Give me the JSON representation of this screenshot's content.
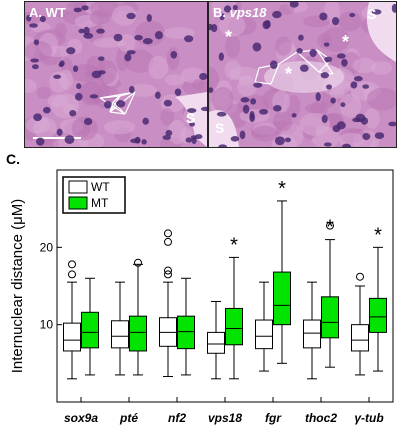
{
  "figure": {
    "panel_a": {
      "letter": "A.",
      "name": "WT",
      "s_labels": [
        "S"
      ],
      "asterisks": []
    },
    "panel_b": {
      "letter": "B.",
      "name": "vps18",
      "s_labels": [
        "S",
        "S"
      ],
      "asterisks": [
        "*",
        "*",
        "*"
      ]
    },
    "panel_c": {
      "letter": "C."
    }
  },
  "colors": {
    "wt": "#ffffff",
    "mt": "#00e400",
    "stain_bg": "#c98fc4",
    "nucleus": "#4b2a73"
  },
  "chart_data": {
    "type": "box",
    "ylabel": "Internuclear distance (μM)",
    "ylim": [
      0,
      30
    ],
    "yticks": [
      10,
      20
    ],
    "categories": [
      "sox9a",
      "pté",
      "nf2",
      "vps18",
      "fgr",
      "thoc2",
      "γ-tub"
    ],
    "legend": {
      "position": "top-left",
      "entries": [
        "WT",
        "MT"
      ]
    },
    "significance_marker": "*",
    "series": [
      {
        "name": "WT",
        "color": "#ffffff",
        "boxes": [
          {
            "whisker_low": 3.0,
            "q1": 6.6,
            "median": 8.0,
            "q3": 10.2,
            "whisker_high": 15.5,
            "outliers": [
              16.5,
              17.8
            ]
          },
          {
            "whisker_low": 3.5,
            "q1": 7.0,
            "median": 8.5,
            "q3": 10.5,
            "whisker_high": 15.5,
            "outliers": []
          },
          {
            "whisker_low": 3.3,
            "q1": 7.2,
            "median": 9.0,
            "q3": 10.9,
            "whisker_high": 15.5,
            "outliers": [
              16.5,
              17.0,
              20.7,
              21.8
            ]
          },
          {
            "whisker_low": 3.0,
            "q1": 6.3,
            "median": 7.5,
            "q3": 9.0,
            "whisker_high": 13.0,
            "outliers": []
          },
          {
            "whisker_low": 4.0,
            "q1": 6.9,
            "median": 8.5,
            "q3": 10.6,
            "whisker_high": 15.5,
            "outliers": []
          },
          {
            "whisker_low": 3.0,
            "q1": 7.0,
            "median": 8.9,
            "q3": 10.6,
            "whisker_high": 15.5,
            "outliers": []
          },
          {
            "whisker_low": 3.5,
            "q1": 6.6,
            "median": 8.0,
            "q3": 10.0,
            "whisker_high": 15.0,
            "outliers": [
              16.2
            ]
          }
        ]
      },
      {
        "name": "MT",
        "color": "#00e400",
        "boxes": [
          {
            "whisker_low": 3.5,
            "q1": 7.0,
            "median": 9.0,
            "q3": 11.6,
            "whisker_high": 16.0,
            "outliers": [],
            "significant": false
          },
          {
            "whisker_low": 3.5,
            "q1": 6.6,
            "median": 9.0,
            "q3": 11.1,
            "whisker_high": 17.8,
            "outliers": [
              18.0
            ],
            "significant": false
          },
          {
            "whisker_low": 3.5,
            "q1": 6.9,
            "median": 9.1,
            "q3": 11.1,
            "whisker_high": 16.0,
            "outliers": [],
            "significant": false
          },
          {
            "whisker_low": 3.0,
            "q1": 7.4,
            "median": 9.5,
            "q3": 12.1,
            "whisker_high": 18.7,
            "outliers": [],
            "significant": true
          },
          {
            "whisker_low": 5.0,
            "q1": 10.0,
            "median": 12.5,
            "q3": 16.8,
            "whisker_high": 26.0,
            "outliers": [],
            "significant": true
          },
          {
            "whisker_low": 4.5,
            "q1": 8.3,
            "median": 10.3,
            "q3": 13.6,
            "whisker_high": 21.0,
            "outliers": [
              22.8
            ],
            "significant": true
          },
          {
            "whisker_low": 4.0,
            "q1": 9.0,
            "median": 11.0,
            "q3": 13.4,
            "whisker_high": 20.0,
            "outliers": [],
            "significant": true
          }
        ]
      }
    ]
  }
}
